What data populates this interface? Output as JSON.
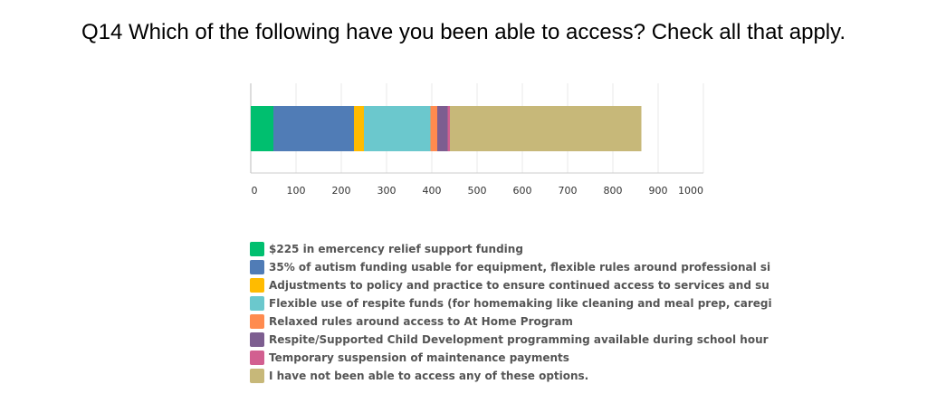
{
  "title": "Q14 Which of the following have you been able to access? Check all that apply.",
  "chart_data": {
    "type": "bar",
    "orientation": "horizontal",
    "stacked": true,
    "title": "Q14 Which of the following have you been able to access? Check all that apply.",
    "xlim": [
      0,
      1000
    ],
    "x_ticks": [
      "0",
      "100",
      "200",
      "300",
      "400",
      "500",
      "600",
      "700",
      "800",
      "900",
      "1000"
    ],
    "grid": true,
    "legend_position": "bottom",
    "series": [
      {
        "name": "$225 in emercency relief support funding",
        "value": 50,
        "color": "#00bf6f"
      },
      {
        "name": "35% of autism funding usable for equipment, flexible rules around professional si",
        "value": 178,
        "color": "#507cb6"
      },
      {
        "name": "Adjustments to policy and practice to ensure continued access to services and su",
        "value": 22,
        "color": "#ffbb00"
      },
      {
        "name": "Flexible use of respite funds (for homemaking like cleaning and meal prep, caregi",
        "value": 147,
        "color": "#6bc8cd"
      },
      {
        "name": "Relaxed rules around access to At Home Program",
        "value": 15,
        "color": "#ff8b4f"
      },
      {
        "name": "Respite/Supported Child Development programming available during school hour",
        "value": 23,
        "color": "#7d5e90"
      },
      {
        "name": "Temporary suspension of maintenance payments",
        "value": 5,
        "color": "#d25f90"
      },
      {
        "name": "I have not been able to access any of these options.",
        "value": 423,
        "color": "#c7b879"
      }
    ]
  }
}
